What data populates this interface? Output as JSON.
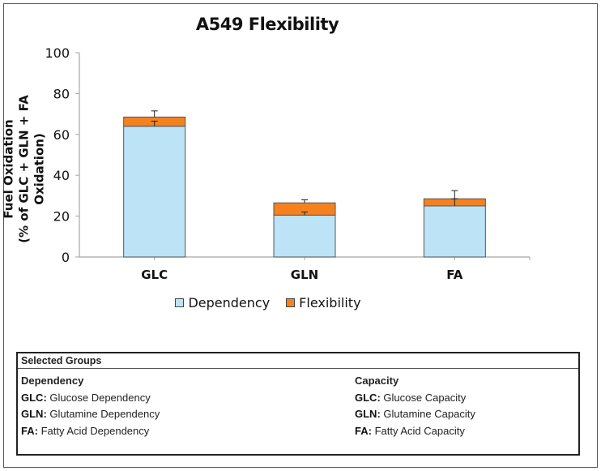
{
  "chart_data": {
    "type": "bar",
    "stacked": true,
    "title": "A549 Flexibility",
    "xlabel": "",
    "ylabel": "Fuel Oxidation",
    "ylabel_line2": "(% of GLC + GLN + FA Oxidation)",
    "ylim": [
      0,
      100
    ],
    "yticks": [
      "0",
      "20",
      "40",
      "60",
      "80",
      "100"
    ],
    "ytick_values": [
      0,
      20,
      40,
      60,
      80,
      100
    ],
    "categories": [
      "GLC",
      "GLN",
      "FA"
    ],
    "series": [
      {
        "name": "Dependency",
        "color": "#bde3f7",
        "values": [
          64,
          20.5,
          25
        ],
        "error": [
          2.5,
          1.5,
          3.5
        ]
      },
      {
        "name": "Flexibility",
        "color": "#f5821f",
        "values": [
          4.5,
          6,
          3.5
        ],
        "error": [
          3,
          1.5,
          4
        ]
      }
    ],
    "legend_position": "bottom",
    "grid": false
  },
  "legend": {
    "items": [
      {
        "label": "Dependency",
        "color": "#bde3f7"
      },
      {
        "label": "Flexibility",
        "color": "#f5821f"
      }
    ]
  },
  "groups": {
    "header": "Selected Groups",
    "left": {
      "title": "Dependency",
      "rows": [
        {
          "key": "GLC:",
          "text": " Glucose Dependency"
        },
        {
          "key": "GLN:",
          "text": " Glutamine Dependency"
        },
        {
          "key": "FA:",
          "text": " Fatty Acid Dependency"
        }
      ]
    },
    "right": {
      "title": "Capacity",
      "rows": [
        {
          "key": "GLC:",
          "text": " Glucose Capacity"
        },
        {
          "key": "GLN:",
          "text": " Glutamine Capacity"
        },
        {
          "key": "FA:",
          "text": " Fatty Acid Capacity"
        }
      ]
    }
  }
}
